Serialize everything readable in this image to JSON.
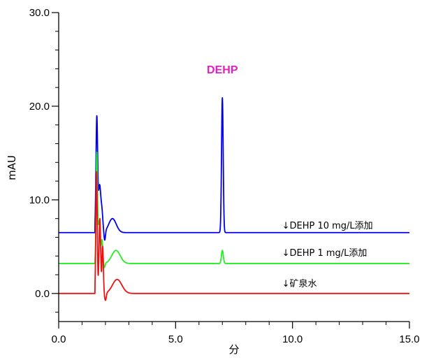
{
  "chart_data": {
    "type": "line",
    "title": "",
    "xlabel": "分",
    "ylabel": "mAU",
    "xlim": [
      0,
      15
    ],
    "ylim": [
      -3,
      30
    ],
    "grid": false,
    "x_ticks": [
      {
        "value": 0,
        "label": "0.0"
      },
      {
        "value": 5,
        "label": "5.0"
      },
      {
        "value": 10,
        "label": "10.0"
      },
      {
        "value": 15,
        "label": "15.0"
      }
    ],
    "y_ticks": [
      {
        "value": 0,
        "label": "0.0"
      },
      {
        "value": 10,
        "label": "10.0"
      },
      {
        "value": 20,
        "label": "20.0"
      },
      {
        "value": 30,
        "label": "30.0"
      }
    ],
    "peak_label": {
      "text": "DEHP",
      "x": 7.0,
      "y": 23.5,
      "color": "#e020c0"
    },
    "series": [
      {
        "color": "#0000ee",
        "annotation": "↓DEHP  10 mg/L添加",
        "baseline": 6.5,
        "peaks": [
          {
            "center": 1.63,
            "height": 12.2,
            "width": 0.035
          },
          {
            "center": 1.75,
            "height": 5.0,
            "width": 0.05
          },
          {
            "center": 1.85,
            "height": 2.0,
            "width": 0.04
          },
          {
            "center": 2.3,
            "height": 1.5,
            "width": 0.16
          },
          {
            "center": 7.0,
            "height": 14.4,
            "width": 0.035
          }
        ],
        "dip": {
          "center": 1.97,
          "depth": 1.0,
          "width": 0.03
        },
        "start": 1.55
      },
      {
        "color": "#22ee22",
        "annotation": "↓DEHP  1 mg/L添加",
        "baseline": 3.2,
        "peaks": [
          {
            "center": 1.63,
            "height": 11.7,
            "width": 0.03
          },
          {
            "center": 1.73,
            "height": 4.5,
            "width": 0.04
          },
          {
            "center": 1.85,
            "height": 2.5,
            "width": 0.035
          },
          {
            "center": 2.45,
            "height": 1.4,
            "width": 0.18
          },
          {
            "center": 7.0,
            "height": 1.4,
            "width": 0.04
          }
        ],
        "dip": {
          "center": 1.95,
          "depth": 0.5,
          "width": 0.03
        },
        "start": 1.55
      },
      {
        "color": "#ee1111",
        "annotation": "↓矿泉水",
        "baseline": 0,
        "peaks": [
          {
            "center": 1.62,
            "height": 13.0,
            "width": 0.03
          },
          {
            "center": 1.76,
            "height": 8.0,
            "width": 0.035
          },
          {
            "center": 1.88,
            "height": 5.0,
            "width": 0.03
          },
          {
            "center": 2.5,
            "height": 1.5,
            "width": 0.2
          }
        ],
        "dip": {
          "center": 2.0,
          "depth": 0.8,
          "width": 0.035
        },
        "start": 1.55
      }
    ]
  }
}
